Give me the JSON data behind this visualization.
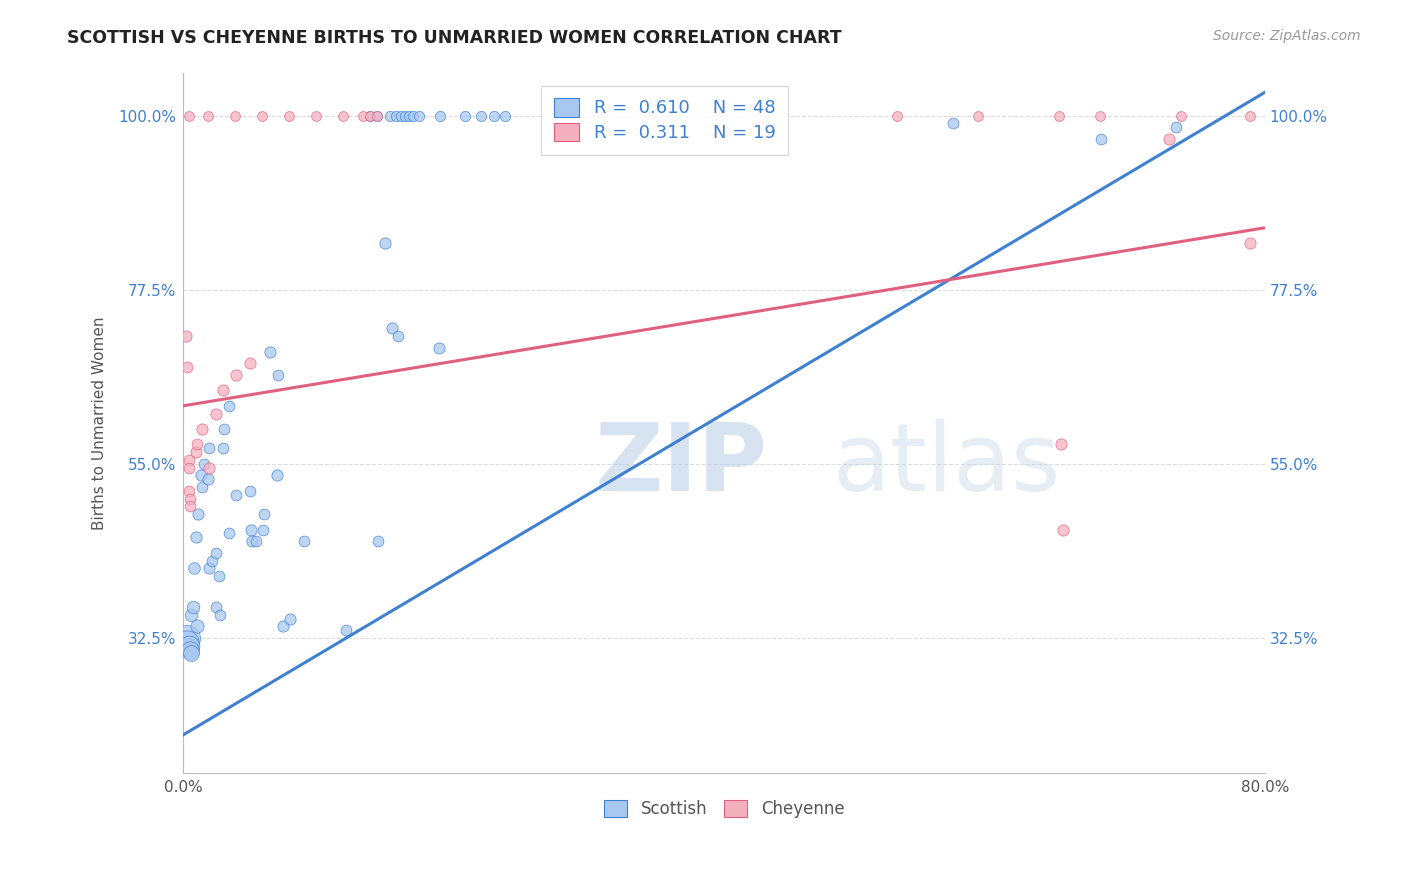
{
  "title": "SCOTTISH VS CHEYENNE BIRTHS TO UNMARRIED WOMEN CORRELATION CHART",
  "source": "Source: ZipAtlas.com",
  "ylabel": "Births to Unmarried Women",
  "x_min": 0.0,
  "x_max": 0.8,
  "y_min": 0.15,
  "y_max": 1.055,
  "x_ticks": [
    0.0,
    0.1,
    0.2,
    0.3,
    0.4,
    0.5,
    0.6,
    0.7,
    0.8
  ],
  "x_tick_labels": [
    "0.0%",
    "",
    "",
    "",
    "",
    "",
    "",
    "",
    "80.0%"
  ],
  "y_ticks": [
    0.325,
    0.55,
    0.775,
    1.0
  ],
  "y_tick_labels": [
    "32.5%",
    "55.0%",
    "77.5%",
    "100.0%"
  ],
  "scottish_color": "#a8c8f0",
  "cheyenne_color": "#f5b0c0",
  "scottish_line_color": "#4080d0",
  "cheyenne_line_color": "#e06080",
  "legend_R_scottish": "0.610",
  "legend_N_scottish": "48",
  "legend_R_cheyenne": "0.311",
  "legend_N_cheyenne": "19",
  "watermark_zip": "ZIP",
  "watermark_atlas": "atlas",
  "background_color": "#ffffff",
  "grid_color": "#dddddd",
  "scottish_points": [
    [
      0.003,
      0.325,
      350
    ],
    [
      0.003,
      0.32,
      280
    ],
    [
      0.004,
      0.315,
      220
    ],
    [
      0.005,
      0.31,
      160
    ],
    [
      0.006,
      0.305,
      130
    ],
    [
      0.006,
      0.355,
      80
    ],
    [
      0.007,
      0.365,
      80
    ],
    [
      0.008,
      0.415,
      70
    ],
    [
      0.009,
      0.455,
      65
    ],
    [
      0.01,
      0.34,
      90
    ],
    [
      0.011,
      0.485,
      65
    ],
    [
      0.013,
      0.535,
      65
    ],
    [
      0.014,
      0.52,
      60
    ],
    [
      0.015,
      0.55,
      60
    ],
    [
      0.018,
      0.53,
      65
    ],
    [
      0.019,
      0.57,
      60
    ],
    [
      0.019,
      0.415,
      65
    ],
    [
      0.021,
      0.425,
      60
    ],
    [
      0.024,
      0.365,
      60
    ],
    [
      0.024,
      0.435,
      60
    ],
    [
      0.026,
      0.405,
      60
    ],
    [
      0.027,
      0.355,
      60
    ],
    [
      0.029,
      0.57,
      60
    ],
    [
      0.03,
      0.595,
      60
    ],
    [
      0.034,
      0.625,
      60
    ],
    [
      0.034,
      0.46,
      60
    ],
    [
      0.039,
      0.51,
      60
    ],
    [
      0.049,
      0.515,
      60
    ],
    [
      0.05,
      0.465,
      65
    ],
    [
      0.051,
      0.45,
      65
    ],
    [
      0.054,
      0.45,
      60
    ],
    [
      0.059,
      0.465,
      60
    ],
    [
      0.06,
      0.485,
      60
    ],
    [
      0.064,
      0.695,
      65
    ],
    [
      0.069,
      0.535,
      65
    ],
    [
      0.07,
      0.665,
      60
    ],
    [
      0.074,
      0.34,
      65
    ],
    [
      0.079,
      0.35,
      65
    ],
    [
      0.089,
      0.45,
      60
    ],
    [
      0.12,
      0.335,
      60
    ],
    [
      0.144,
      0.45,
      60
    ],
    [
      0.149,
      0.835,
      65
    ],
    [
      0.154,
      0.725,
      65
    ],
    [
      0.159,
      0.715,
      60
    ],
    [
      0.189,
      0.7,
      65
    ],
    [
      0.569,
      0.99,
      60
    ],
    [
      0.679,
      0.97,
      60
    ],
    [
      0.734,
      0.985,
      60
    ]
  ],
  "cheyenne_points": [
    [
      0.002,
      0.715,
      65
    ],
    [
      0.003,
      0.675,
      60
    ],
    [
      0.004,
      0.555,
      60
    ],
    [
      0.004,
      0.545,
      60
    ],
    [
      0.004,
      0.515,
      60
    ],
    [
      0.005,
      0.505,
      60
    ],
    [
      0.005,
      0.495,
      60
    ],
    [
      0.009,
      0.565,
      65
    ],
    [
      0.01,
      0.575,
      60
    ],
    [
      0.014,
      0.595,
      65
    ],
    [
      0.019,
      0.545,
      65
    ],
    [
      0.024,
      0.615,
      65
    ],
    [
      0.029,
      0.645,
      65
    ],
    [
      0.039,
      0.665,
      65
    ],
    [
      0.049,
      0.68,
      65
    ],
    [
      0.649,
      0.575,
      65
    ],
    [
      0.651,
      0.465,
      65
    ],
    [
      0.729,
      0.97,
      65
    ],
    [
      0.789,
      0.835,
      65
    ]
  ],
  "top_row_scottish_x": [
    0.138,
    0.143,
    0.153,
    0.157,
    0.161,
    0.164,
    0.167,
    0.17,
    0.174,
    0.19,
    0.208,
    0.22,
    0.23,
    0.238
  ],
  "top_row_cheyenne_x": [
    0.004,
    0.018,
    0.038,
    0.058,
    0.078,
    0.098,
    0.118,
    0.133,
    0.138,
    0.143,
    0.528,
    0.588,
    0.648,
    0.678,
    0.738,
    0.789
  ],
  "scottish_trend_x": [
    0.0,
    0.8
  ],
  "scottish_trend_y": [
    0.2,
    1.03
  ],
  "cheyenne_trend_x": [
    0.0,
    0.8
  ],
  "cheyenne_trend_y": [
    0.625,
    0.855
  ]
}
